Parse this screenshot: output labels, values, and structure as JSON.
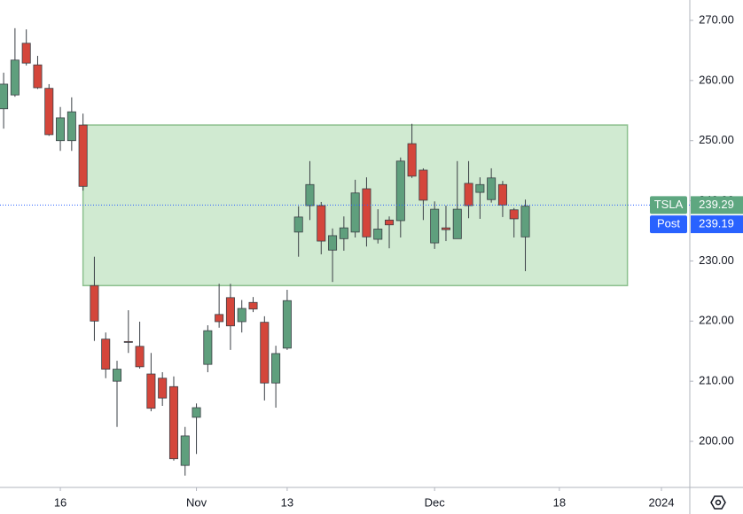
{
  "chart_data": {
    "type": "candlestick",
    "x": [
      0,
      1,
      2,
      3,
      4,
      5,
      6,
      7,
      8,
      9,
      10,
      11,
      12,
      13,
      14,
      15,
      16,
      17,
      18,
      19,
      20,
      21,
      22,
      23,
      24,
      25,
      26,
      27,
      28,
      29,
      30,
      31,
      32,
      33,
      34,
      35,
      36,
      37,
      38,
      39,
      40,
      41,
      42,
      43,
      44,
      45,
      46
    ],
    "open": [
      255.3,
      257.6,
      266.2,
      262.6,
      258.7,
      250.0,
      250.0,
      252.6,
      225.9,
      217.0,
      210.0,
      216.6,
      215.8,
      211.2,
      210.5,
      209.1,
      196.0,
      204.0,
      212.8,
      221.1,
      223.9,
      219.9,
      223.1,
      219.8,
      209.7,
      215.5,
      234.8,
      239.2,
      239.2,
      231.8,
      233.7,
      234.8,
      242.0,
      233.6,
      236.8,
      236.7,
      249.5,
      245.1,
      233.0,
      235.5,
      233.7,
      242.9,
      241.4,
      240.2,
      242.7,
      238.5,
      234.0
    ],
    "high": [
      261.3,
      268.7,
      268.5,
      264.1,
      259.4,
      255.6,
      257.2,
      254.5,
      230.7,
      218.1,
      213.4,
      221.8,
      219.9,
      214.7,
      211.5,
      210.8,
      202.4,
      206.3,
      219.3,
      226.2,
      226.2,
      223.5,
      224.0,
      220.8,
      215.9,
      225.2,
      239.1,
      246.6,
      239.8,
      235.4,
      237.4,
      243.5,
      243.9,
      238.6,
      237.4,
      247.2,
      252.8,
      245.4,
      239.9,
      239.2,
      246.6,
      246.6,
      243.9,
      245.4,
      243.3,
      238.8,
      240.2
    ],
    "low": [
      252.0,
      257.3,
      262.5,
      258.6,
      250.8,
      248.3,
      248.3,
      241.7,
      216.7,
      210.5,
      202.4,
      214.7,
      212.1,
      205.0,
      205.9,
      196.8,
      194.3,
      197.9,
      211.5,
      218.9,
      215.2,
      218.1,
      221.5,
      206.8,
      205.6,
      215.2,
      230.7,
      236.8,
      231.1,
      226.5,
      231.7,
      233.9,
      232.4,
      232.9,
      232.1,
      233.9,
      243.8,
      236.8,
      232.0,
      233.3,
      233.7,
      237.1,
      237.0,
      239.7,
      237.3,
      233.9,
      228.3
    ],
    "close": [
      259.4,
      263.4,
      262.9,
      258.8,
      251.0,
      253.8,
      254.8,
      242.4,
      220.0,
      212.0,
      212.0,
      216.5,
      212.4,
      205.5,
      207.2,
      197.1,
      200.9,
      205.6,
      218.4,
      219.9,
      219.2,
      222.1,
      222.0,
      209.7,
      214.6,
      223.4,
      237.3,
      242.7,
      233.3,
      234.2,
      235.5,
      241.3,
      234.0,
      235.3,
      236.0,
      246.6,
      244.1,
      240.1,
      238.6,
      235.2,
      238.6,
      239.2,
      242.7,
      243.8,
      239.3,
      237.0,
      239.1
    ],
    "up_color": "#5f9f7d",
    "down_color": "#d4463b",
    "xlim": [
      -0.32,
      60.5
    ],
    "xticks": [
      {
        "value": 5,
        "label": "16"
      },
      {
        "value": 17,
        "label": "Nov"
      },
      {
        "value": 25,
        "label": "13"
      },
      {
        "value": 38,
        "label": "Dec"
      },
      {
        "value": 49,
        "label": "18"
      },
      {
        "value": 58,
        "label": "2024"
      }
    ],
    "ylim": [
      192.34,
      273.39
    ],
    "yticks": [
      {
        "value": 200,
        "label": "200.00"
      },
      {
        "value": 210,
        "label": "210.00"
      },
      {
        "value": 220,
        "label": "220.00"
      },
      {
        "value": 230,
        "label": "230.00"
      },
      {
        "value": 240,
        "label": "240.00"
      },
      {
        "value": 250,
        "label": "250.00"
      },
      {
        "value": 260,
        "label": "260.00"
      },
      {
        "value": 270,
        "label": "270.00"
      }
    ],
    "zone": {
      "x": [
        7,
        55
      ],
      "y": [
        225.9,
        252.6
      ],
      "color": "#c8e6c9"
    },
    "price_labels": [
      {
        "name": "TSLA",
        "value": 239.29,
        "color": "#5ea780"
      },
      {
        "name": "Post",
        "value": 239.19,
        "color": "#2962ff"
      }
    ]
  }
}
